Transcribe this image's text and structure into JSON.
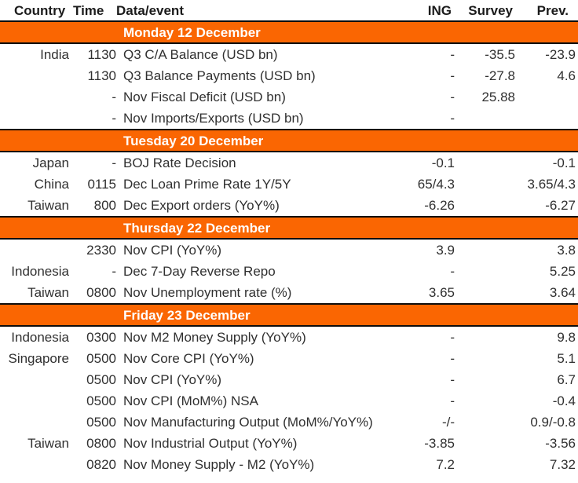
{
  "table": {
    "columns": [
      "Country",
      "Time",
      "Data/event",
      "ING",
      "Survey",
      "Prev."
    ],
    "colors": {
      "accent_orange": "#fa6602",
      "bar_label_text": "#ffffff",
      "header_text": "#1b1b1b",
      "body_text": "#303030",
      "rule_line": "#0d0d0d"
    },
    "sections": [
      {
        "day": "Monday 12 December",
        "rows": [
          {
            "country": "India",
            "time": "1130",
            "event": "Q3 C/A Balance (USD bn)",
            "ing": "-",
            "survey": "-35.5",
            "prev": "-23.9"
          },
          {
            "country": "",
            "time": "1130",
            "event": "Q3 Balance Payments (USD bn)",
            "ing": "-",
            "survey": "-27.8",
            "prev": "4.6"
          },
          {
            "country": "",
            "time": "-",
            "event": "Nov Fiscal Deficit (USD bn)",
            "ing": "-",
            "survey": "25.88",
            "prev": ""
          },
          {
            "country": "",
            "time": "-",
            "event": "Nov Imports/Exports (USD bn)",
            "ing": "-",
            "survey": "",
            "prev": ""
          }
        ]
      },
      {
        "day": "Tuesday 20 December",
        "rows": [
          {
            "country": "Japan",
            "time": "-",
            "event": "BOJ Rate Decision",
            "ing": "-0.1",
            "survey": "",
            "prev": "-0.1"
          },
          {
            "country": "China",
            "time": "0115",
            "event": "Dec Loan Prime Rate 1Y/5Y",
            "ing": "65/4.3",
            "survey": "",
            "prev": "3.65/4.3"
          },
          {
            "country": "Taiwan",
            "time": "800",
            "event": "Dec Export orders (YoY%)",
            "ing": "-6.26",
            "survey": "",
            "prev": "-6.27"
          }
        ]
      },
      {
        "day": "Thursday 22 December",
        "rows": [
          {
            "country": "",
            "time": "2330",
            "event": "Nov CPI (YoY%)",
            "ing": "3.9",
            "survey": "",
            "prev": "3.8"
          },
          {
            "country": "Indonesia",
            "time": "-",
            "event": "Dec 7-Day Reverse Repo",
            "ing": "-",
            "survey": "",
            "prev": "5.25"
          },
          {
            "country": "Taiwan",
            "time": "0800",
            "event": "Nov Unemployment rate (%)",
            "ing": "3.65",
            "survey": "",
            "prev": "3.64"
          }
        ]
      },
      {
        "day": "Friday 23 December",
        "rows": [
          {
            "country": "Indonesia",
            "time": "0300",
            "event": "Nov M2 Money Supply (YoY%)",
            "ing": "-",
            "survey": "",
            "prev": "9.8"
          },
          {
            "country": "Singapore",
            "time": "0500",
            "event": "Nov Core CPI (YoY%)",
            "ing": "-",
            "survey": "",
            "prev": "5.1"
          },
          {
            "country": "",
            "time": "0500",
            "event": "Nov CPI (YoY%)",
            "ing": "-",
            "survey": "",
            "prev": "6.7"
          },
          {
            "country": "",
            "time": "0500",
            "event": "Nov CPI (MoM%) NSA",
            "ing": "-",
            "survey": "",
            "prev": "-0.4"
          },
          {
            "country": "",
            "time": "0500",
            "event": "Nov Manufacturing Output (MoM%/YoY%)",
            "ing": "-/-",
            "survey": "",
            "prev": "0.9/-0.8"
          },
          {
            "country": "Taiwan",
            "time": "0800",
            "event": "Nov Industrial Output (YoY%)",
            "ing": "-3.85",
            "survey": "",
            "prev": "-3.56"
          },
          {
            "country": "",
            "time": "0820",
            "event": "Nov Money Supply - M2 (YoY%)",
            "ing": "7.2",
            "survey": "",
            "prev": "7.32"
          }
        ]
      }
    ]
  }
}
